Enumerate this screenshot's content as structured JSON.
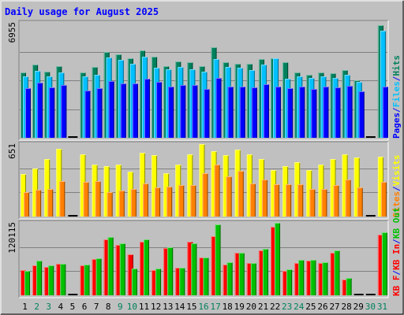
{
  "chart_data": {
    "type": "bar",
    "title": "Daily usage for August 2025",
    "categories": [
      "1",
      "2",
      "3",
      "4",
      "5",
      "6",
      "7",
      "8",
      "9",
      "10",
      "11",
      "12",
      "13",
      "14",
      "15",
      "16",
      "17",
      "18",
      "19",
      "20",
      "21",
      "22",
      "23",
      "24",
      "25",
      "26",
      "27",
      "28",
      "29",
      "30",
      "31"
    ],
    "weekend_days": [
      "2",
      "3",
      "9",
      "10",
      "16",
      "17",
      "23",
      "24",
      "30",
      "31"
    ],
    "panels": [
      {
        "key": "pages_files_hits",
        "max_label": "6955",
        "ymax": 6955,
        "right_label_parts": [
          "Pages",
          "/",
          "Files",
          "/",
          "Hits"
        ],
        "series": [
          {
            "name": "Hits",
            "color": "#00805c",
            "values": [
              3950,
              4450,
              4000,
              4350,
              0,
              3950,
              4300,
              5200,
              5050,
              4800,
              5300,
              4900,
              4350,
              4600,
              4550,
              4350,
              5500,
              4550,
              4500,
              4500,
              4750,
              4800,
              4550,
              3950,
              3800,
              3950,
              3900,
              4100,
              3500,
              0,
              6800
            ]
          },
          {
            "name": "Files",
            "color": "#00c0ff",
            "values": [
              3700,
              4050,
              3700,
              3950,
              0,
              3700,
              3800,
              4850,
              4700,
              4500,
              4900,
              4250,
              4150,
              4300,
              4150,
              4000,
              4750,
              4300,
              4250,
              4100,
              4450,
              4800,
              3550,
              3700,
              3600,
              3700,
              3600,
              3800,
              3400,
              0,
              6500
            ]
          },
          {
            "name": "Pages",
            "color": "#0000ff",
            "values": [
              3000,
              3350,
              3050,
              3200,
              0,
              2850,
              3000,
              3450,
              3300,
              3300,
              3550,
              3400,
              3100,
              3200,
              3200,
              2950,
              3600,
              3100,
              3100,
              3050,
              3250,
              3100,
              3000,
              3100,
              2950,
              3100,
              3050,
              3150,
              2800,
              0,
              3100
            ]
          }
        ]
      },
      {
        "key": "visits_sites",
        "max_label": "651",
        "ymax": 651,
        "right_label_parts": [
          "Sites",
          "/",
          "Visits"
        ],
        "series": [
          {
            "name": "Visits",
            "color": "#ffff00",
            "values": [
              380,
              430,
              520,
              610,
              0,
              560,
              470,
              450,
              470,
              400,
              570,
              550,
              390,
              470,
              560,
              650,
              590,
              550,
              600,
              560,
              520,
              420,
              450,
              490,
              420,
              470,
              520,
              560,
              530,
              0,
              540
            ]
          },
          {
            "name": "Sites",
            "color": "#ff8000",
            "values": [
              220,
              240,
              250,
              320,
              0,
              310,
              320,
              220,
              230,
              250,
              300,
              260,
              270,
              280,
              280,
              390,
              470,
              360,
              410,
              300,
              330,
              290,
              290,
              290,
              250,
              250,
              280,
              330,
              260,
              0,
              310
            ]
          }
        ]
      },
      {
        "key": "kbf_in_out",
        "max_label": "120115",
        "ymax": 120115,
        "right_label_parts": [
          "KB F",
          "/",
          "KB In",
          "/",
          "KB Out"
        ],
        "series": [
          {
            "name": "KB F",
            "color": "#ff0000",
            "values": [
              0,
              0,
              0,
              0,
              0,
              0,
              0,
              0,
              0,
              0,
              0,
              0,
              0,
              0,
              0,
              0,
              0,
              0,
              0,
              0,
              0,
              0,
              0,
              0,
              0,
              0,
              0,
              0,
              0,
              0,
              0
            ]
          },
          {
            "name": "KB In",
            "color": "#ff0000",
            "values": [
              42000,
              50000,
              47000,
              52000,
              0,
              50000,
              60000,
              93000,
              84000,
              68000,
              89000,
              42000,
              78000,
              46000,
              89000,
              63000,
              98000,
              51000,
              70000,
              54000,
              74000,
              114000,
              41000,
              54000,
              57000,
              54000,
              70000,
              26000,
              0,
              0,
              100000
            ]
          },
          {
            "name": "KB Out",
            "color": "#00c000",
            "values": [
              41000,
              57000,
              49000,
              52000,
              0,
              51000,
              61000,
              96000,
              86000,
              45000,
              93000,
              44000,
              80000,
              46000,
              86000,
              63000,
              117000,
              55000,
              70000,
              54000,
              77000,
              120000,
              43000,
              59000,
              59000,
              55000,
              75000,
              29000,
              0,
              0,
              104000
            ]
          }
        ]
      }
    ],
    "colors": {
      "background": "#c0c0c0",
      "title": "#0000ff",
      "panel_bg": "#c0c0c0",
      "grid": "#808080",
      "day_weekday": "#000000",
      "day_weekend": "#00805c",
      "separator": "#0000ff"
    }
  }
}
